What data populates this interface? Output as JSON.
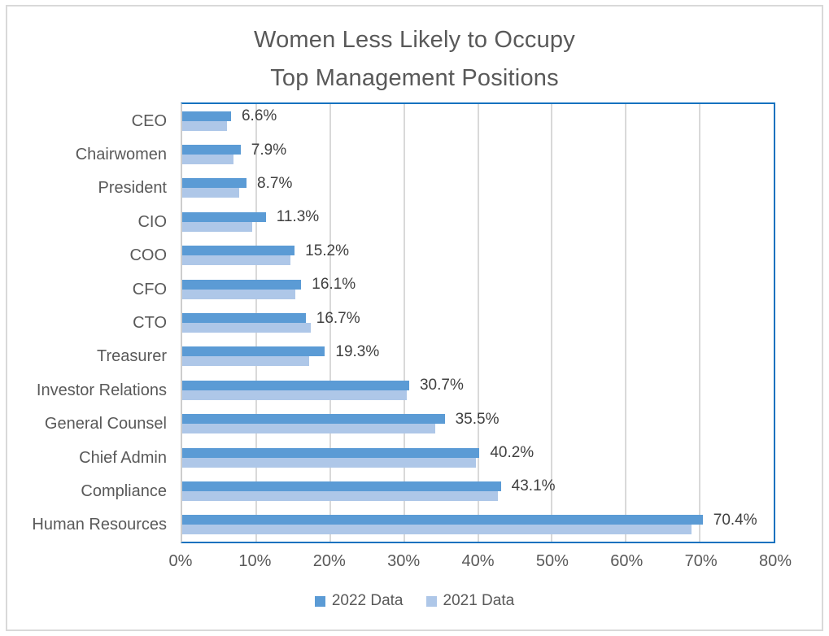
{
  "title": {
    "line1": "Women Less Likely to Occupy",
    "line2": "Top Management Positions"
  },
  "chart_data": {
    "type": "bar",
    "orientation": "horizontal",
    "title": "Women Less Likely to Occupy Top Management Positions",
    "categories": [
      "CEO",
      "Chairwomen",
      "President",
      "CIO",
      "COO",
      "CFO",
      "CTO",
      "Treasurer",
      "Investor Relations",
      "General Counsel",
      "Chief Admin",
      "Compliance",
      "Human Resources"
    ],
    "series": [
      {
        "name": "2022 Data",
        "color": "#5B9BD5",
        "values": [
          6.6,
          7.9,
          8.7,
          11.3,
          15.2,
          16.1,
          16.7,
          19.3,
          30.7,
          35.5,
          40.2,
          43.1,
          70.4
        ],
        "labels": [
          "6.6%",
          "7.9%",
          "8.7%",
          "11.3%",
          "15.2%",
          "16.1%",
          "16.7%",
          "19.3%",
          "30.7%",
          "35.5%",
          "40.2%",
          "43.1%",
          "70.4%"
        ]
      },
      {
        "name": "2021 Data",
        "color": "#AEC7E8",
        "values": [
          6.1,
          6.9,
          7.7,
          9.5,
          14.6,
          15.3,
          17.4,
          17.2,
          30.4,
          34.2,
          39.7,
          42.7,
          68.9
        ]
      }
    ],
    "x_axis": {
      "min": 0,
      "max": 80,
      "tick_step": 10,
      "ticks": [
        "0%",
        "10%",
        "20%",
        "30%",
        "40%",
        "50%",
        "60%",
        "70%",
        "80%"
      ]
    },
    "grid": true,
    "legend_position": "bottom",
    "legend": [
      {
        "label": "2022 Data",
        "color": "#5B9BD5"
      },
      {
        "label": "2021 Data",
        "color": "#AEC7E8"
      }
    ]
  },
  "colors": {
    "title_text": "#595959",
    "axis_text": "#595959",
    "data_label_text": "#404040",
    "plot_border": "#1572BF",
    "gridline": "#D9D9D9",
    "outer_border": "#D9D9D9",
    "series_2022": "#5B9BD5",
    "series_2021": "#AEC7E8"
  }
}
